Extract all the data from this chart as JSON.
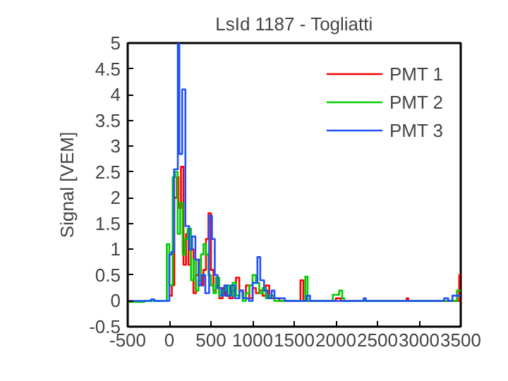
{
  "chart_data": {
    "type": "step",
    "title": "LsId 1187 - Togliatti",
    "ylabel": "Signal [VEM]",
    "xlim": [
      -500,
      3500
    ],
    "xticks": [
      -500,
      0,
      500,
      1000,
      1500,
      2000,
      2500,
      3000,
      3500
    ],
    "ylim": [
      -0.5,
      5
    ],
    "yticks": [
      -0.5,
      0,
      0.5,
      1,
      1.5,
      2,
      2.5,
      3,
      3.5,
      4,
      4.5,
      5
    ],
    "grid": false,
    "legend": "top right",
    "line_style": "solid",
    "marker": "none",
    "series": [
      {
        "name": "PMT 1",
        "color": "#ff0000",
        "x": [
          0,
          30,
          60,
          90,
          110,
          140,
          170,
          200,
          230,
          260,
          290,
          320,
          350,
          380,
          410,
          440,
          470,
          500,
          530,
          560,
          600,
          640,
          680,
          720,
          760,
          800,
          840,
          880,
          920,
          960,
          1000,
          1040,
          1080,
          1120,
          1160,
          1200,
          1260,
          1320,
          1400,
          1575,
          1610,
          1700,
          2000,
          2060,
          2850,
          2870,
          3482,
          3500
        ],
        "values": [
          0.1,
          0.3,
          2.0,
          2.4,
          1.8,
          2.6,
          0.7,
          1.3,
          0.7,
          1.0,
          0.15,
          0.5,
          0.8,
          0.3,
          0.6,
          1.2,
          1.7,
          0.6,
          0.2,
          0.3,
          0.05,
          0.25,
          0.1,
          0.05,
          0.2,
          0.45,
          0.2,
          0.05,
          0.3,
          0.05,
          0.25,
          0.15,
          0.2,
          0.1,
          0.3,
          0.05,
          0.05,
          0,
          0,
          0.4,
          0,
          0,
          0.05,
          0,
          0.05,
          0,
          0.5,
          0.5
        ]
      },
      {
        "name": "PMT 2",
        "color": "#00cc00",
        "x": [
          -500,
          -400,
          -300,
          -30,
          0,
          40,
          70,
          100,
          130,
          160,
          190,
          220,
          260,
          290,
          320,
          350,
          380,
          410,
          440,
          470,
          500,
          530,
          560,
          600,
          640,
          680,
          720,
          760,
          800,
          840,
          880,
          920,
          960,
          1000,
          1040,
          1080,
          1120,
          1160,
          1200,
          1260,
          1320,
          1400,
          1600,
          1633,
          1660,
          1963,
          2040,
          2077,
          2100,
          3455,
          3500
        ],
        "values": [
          -0.02,
          -0.02,
          0,
          1.1,
          0.3,
          2.4,
          2.5,
          1.3,
          1.9,
          0.9,
          1.2,
          1.4,
          0.4,
          0.8,
          0.2,
          0.4,
          0.9,
          1.1,
          0.9,
          0.5,
          0.3,
          0.15,
          0.45,
          0.1,
          0.2,
          0.3,
          0.1,
          0.35,
          0.1,
          0.2,
          0.0,
          0.15,
          0.3,
          0.5,
          0.35,
          0.15,
          0.25,
          0.05,
          0.1,
          0,
          0,
          0,
          0,
          0.47,
          0,
          0.12,
          0.2,
          0.05,
          0,
          0.2,
          0.2
        ]
      },
      {
        "name": "PMT 3",
        "color": "#2050ff",
        "x": [
          -500,
          -220,
          -180,
          0,
          25,
          57,
          102,
          120,
          154,
          193,
          239,
          273,
          313,
          353,
          387,
          432,
          478,
          512,
          546,
          580,
          626,
          660,
          694,
          740,
          785,
          842,
          888,
          956,
          1001,
          1058,
          1092,
          1138,
          1183,
          1229,
          1263,
          1343,
          1388,
          1650,
          1690,
          2333,
          2360,
          3300,
          3350,
          3400,
          3500
        ],
        "values": [
          0,
          0.03,
          0,
          0.9,
          0.95,
          2.55,
          5.0,
          2.85,
          4.1,
          1.45,
          1.0,
          1.25,
          0.8,
          0.3,
          0.5,
          0.15,
          1.65,
          1.2,
          0.5,
          0.25,
          0.1,
          0.3,
          0.1,
          0.3,
          0.05,
          0.2,
          0.05,
          0,
          0.35,
          0.85,
          0.4,
          0.2,
          0.05,
          0.2,
          0.05,
          0.05,
          0,
          0.1,
          0,
          0.05,
          0,
          0.05,
          0,
          0.1,
          0.1
        ]
      }
    ]
  }
}
